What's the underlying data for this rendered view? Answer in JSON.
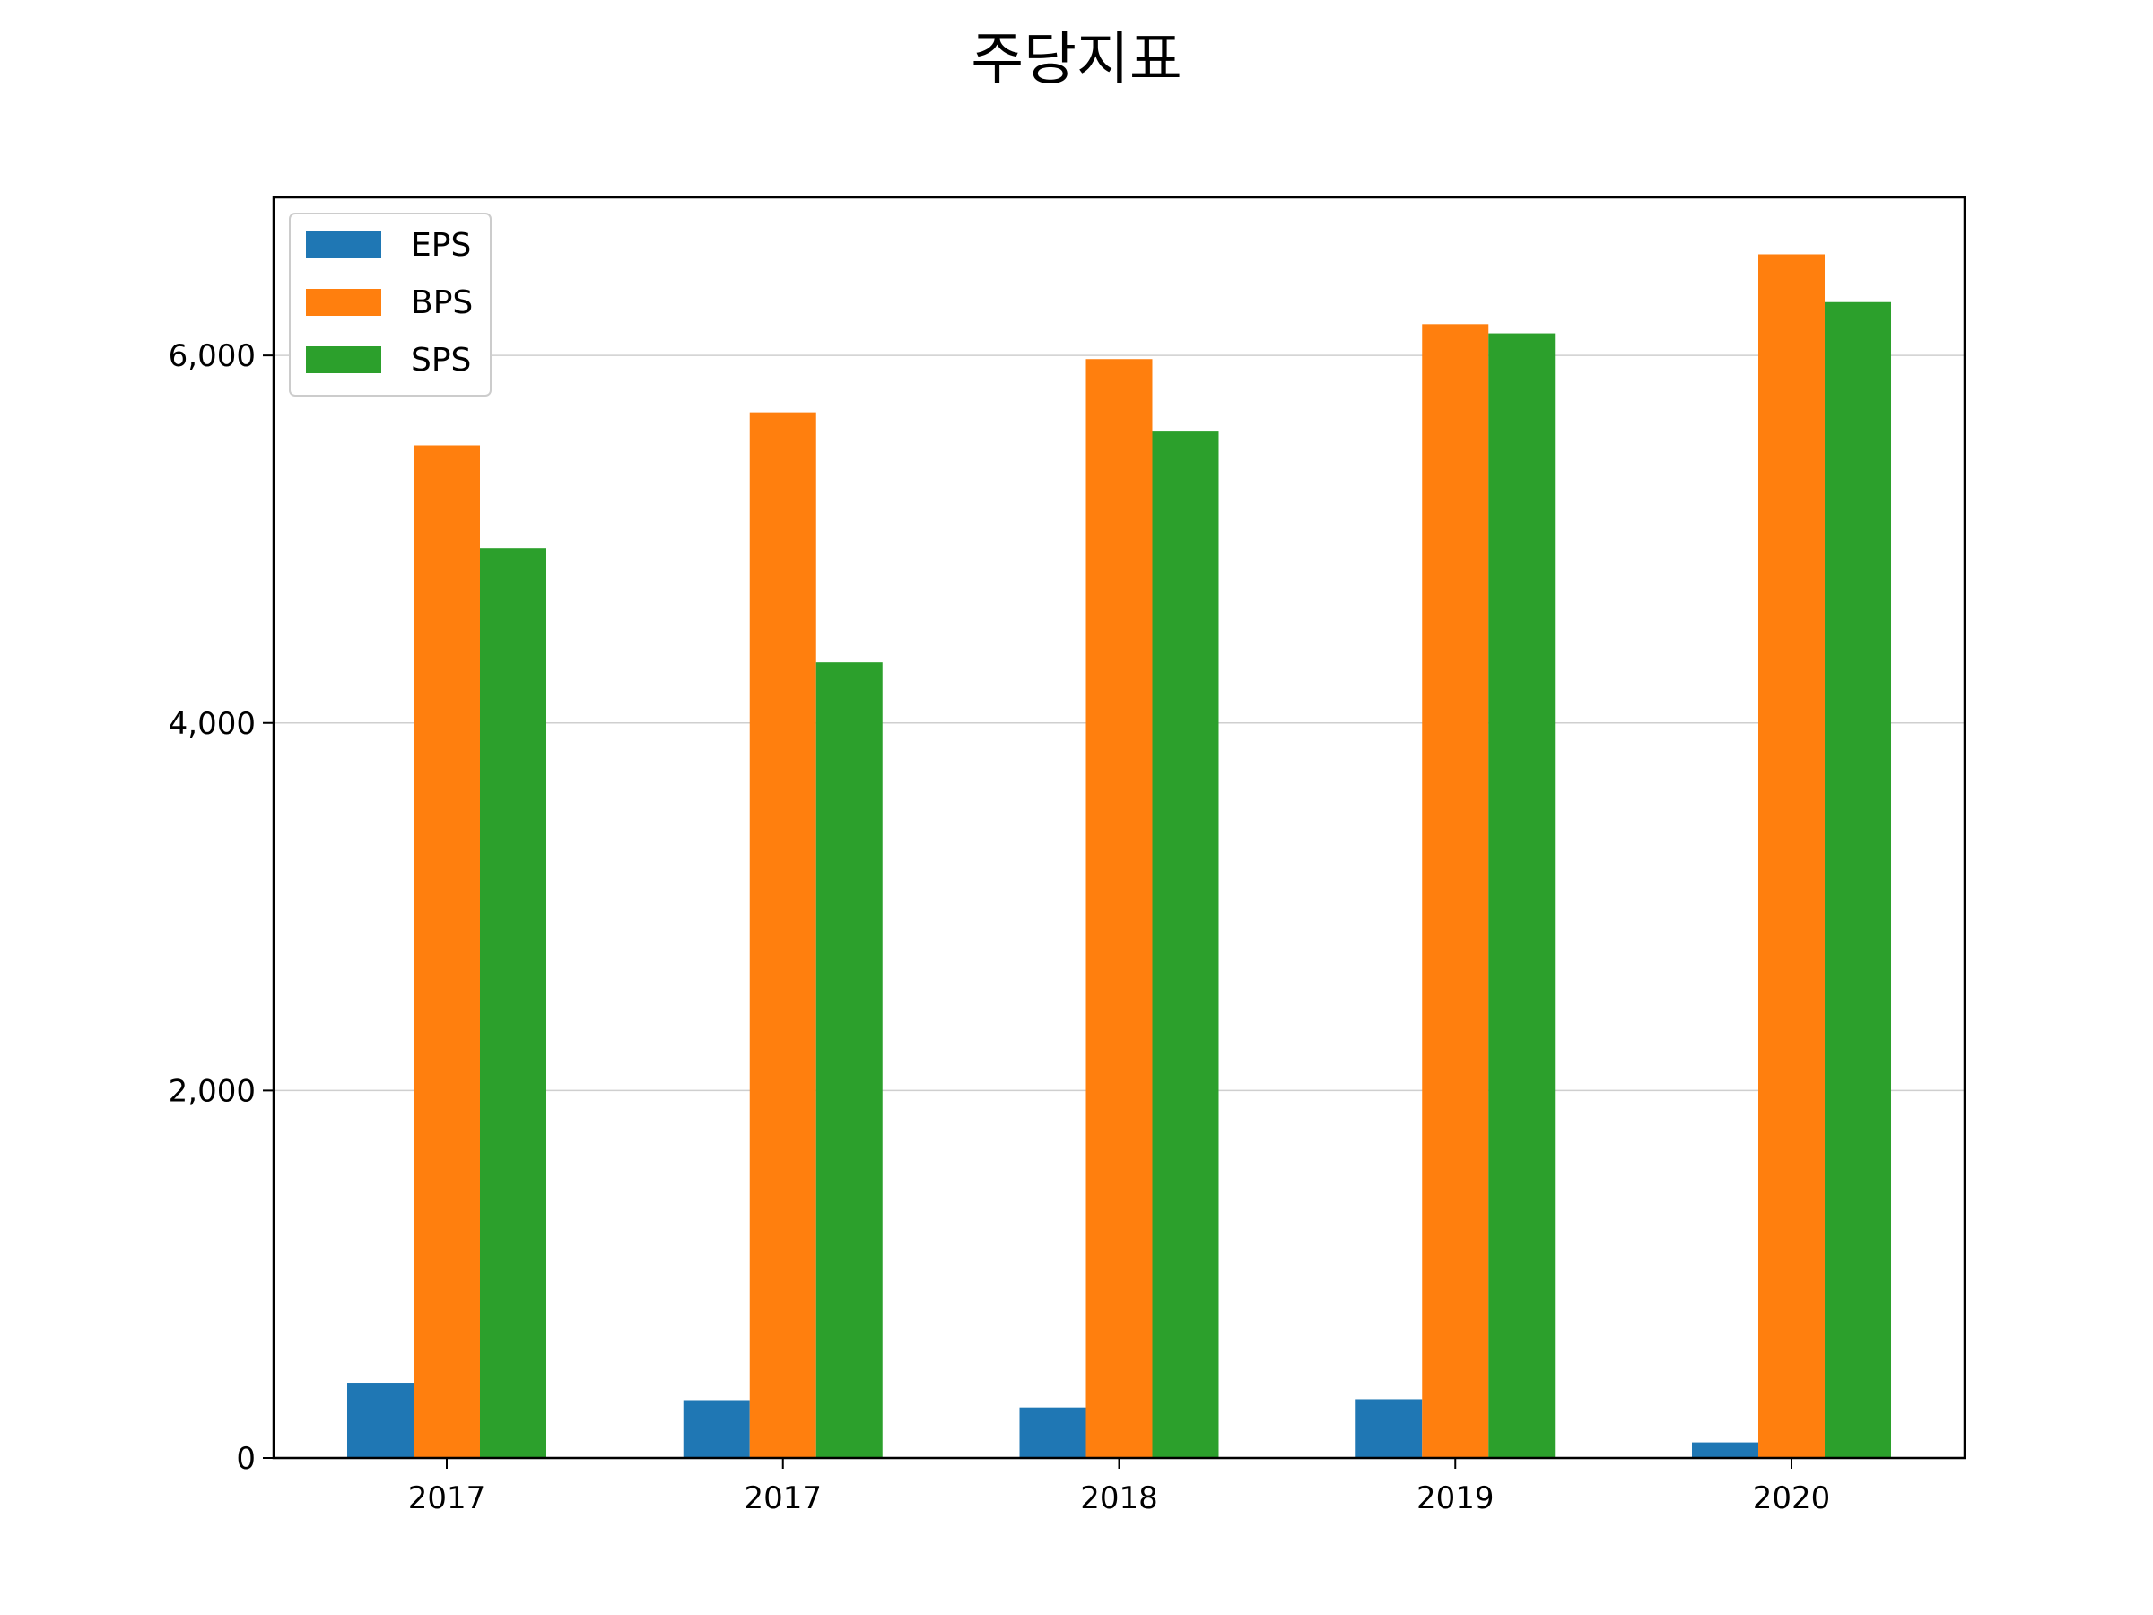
{
  "chart_data": {
    "type": "bar",
    "title": "주당지표",
    "xlabel": "",
    "ylabel": "",
    "categories": [
      "2017",
      "2017",
      "2018",
      "2019",
      "2020"
    ],
    "series": [
      {
        "name": "EPS",
        "color": "#1f77b4",
        "values": [
          410,
          315,
          275,
          320,
          85
        ]
      },
      {
        "name": "BPS",
        "color": "#ff7f0e",
        "values": [
          5510,
          5690,
          5980,
          6170,
          6550
        ]
      },
      {
        "name": "SPS",
        "color": "#2ca02c",
        "values": [
          4950,
          4330,
          5590,
          6120,
          6290
        ]
      }
    ],
    "ylim": [
      0,
      6860
    ],
    "yticks": [
      0,
      2000,
      4000,
      6000
    ],
    "ytick_labels": [
      "0",
      "2,000",
      "4,000",
      "6,000"
    ],
    "grid": "y",
    "legend": "top-left"
  }
}
